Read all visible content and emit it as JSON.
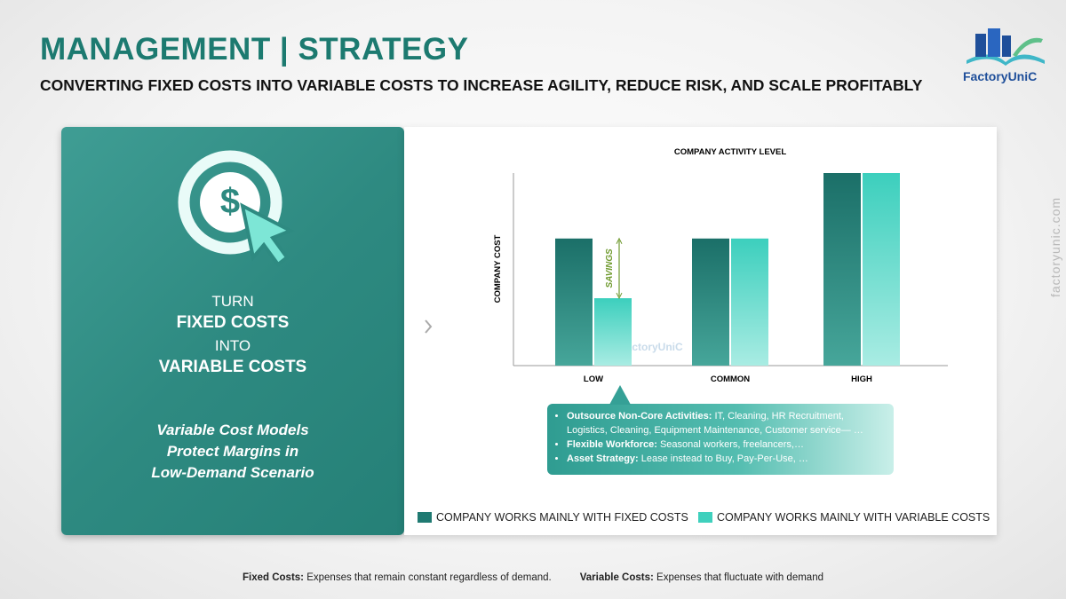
{
  "header": {
    "title": "MANAGEMENT | STRATEGY",
    "subtitle": "CONVERTING FIXED COSTS INTO VARIABLE COSTS TO INCREASE AGILITY, REDUCE RISK, AND SCALE PROFITABLY",
    "logo": "FactoryUniC"
  },
  "panel": {
    "lines": [
      "TURN",
      "FIXED COSTS",
      "INTO",
      "VARIABLE COSTS"
    ],
    "quote": [
      "Variable Cost Models",
      "Protect Margins in",
      "Low-Demand Scenario"
    ]
  },
  "chart_data": {
    "type": "bar",
    "title": "COMPANY ACTIVITY LEVEL",
    "y_label": "COMPANY COST",
    "annotation": "SAVINGS",
    "watermark": "FactoryUniC",
    "categories": [
      "LOW",
      "COMMON",
      "HIGH"
    ],
    "ylim": [
      0,
      100
    ],
    "series": [
      {
        "name": "COMPANY WORKS MAINLY WITH FIXED COSTS",
        "color": "#1f7a72",
        "values": [
          66,
          66,
          100
        ]
      },
      {
        "name": "COMPANY WORKS MAINLY WITH VARIABLE COSTS",
        "color": "#3fd0bd",
        "values": [
          35,
          66,
          100
        ]
      }
    ],
    "legend": "bottom"
  },
  "callout": [
    {
      "label": "Outsource Non-Core Activities:",
      "text": "IT, Cleaning, HR Recruitment, Logistics, Cleaning, Equipment Maintenance, Customer service— …"
    },
    {
      "label": "Flexible Workforce:",
      "text": "Seasonal workers,  freelancers,…"
    },
    {
      "label": "Asset Strategy:",
      "text": "Lease instead to Buy, Pay-Per-Use, …"
    }
  ],
  "footer": [
    {
      "label": "Fixed Costs:",
      "text": "Expenses that remain constant regardless of demand."
    },
    {
      "label": "Variable Costs:",
      "text": "Expenses that fluctuate with demand"
    }
  ],
  "side_text": "factoryunic.com"
}
